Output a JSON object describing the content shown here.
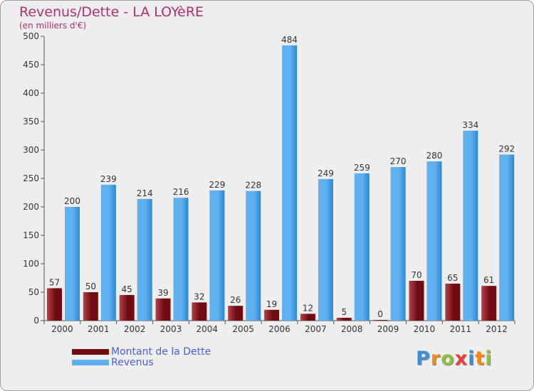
{
  "header": {
    "title": "Revenus/Dette - LA LOYèRE",
    "subtitle": "(en milliers d'€)"
  },
  "legend": {
    "debt_label": "Montant de la Dette",
    "revenue_label": "Revenus"
  },
  "colors": {
    "debt": "#6e0c12",
    "debt_light": "#b5414a",
    "revenue": "#2f86cf",
    "revenue_light": "#5eb0ee"
  },
  "logo": {
    "letters": [
      "P",
      "r",
      "o",
      "x",
      "i",
      "t",
      "i"
    ],
    "colors": [
      "#3a8fd8",
      "#f28a1a",
      "#8ac23d",
      "#e8403a",
      "#3a8fd8",
      "#f28a1a",
      "#8ac23d"
    ]
  },
  "chart_data": {
    "type": "bar",
    "title": "Revenus/Dette - LA LOYèRE",
    "ylabel": "(en milliers d'€)",
    "xlabel": "",
    "categories": [
      "2000",
      "2001",
      "2002",
      "2003",
      "2004",
      "2005",
      "2006",
      "2007",
      "2008",
      "2009",
      "2010",
      "2011",
      "2012"
    ],
    "series": [
      {
        "name": "Montant de la Dette",
        "values": [
          57,
          50,
          45,
          39,
          32,
          26,
          19,
          12,
          5,
          0,
          70,
          65,
          61
        ]
      },
      {
        "name": "Revenus",
        "values": [
          200,
          239,
          214,
          216,
          229,
          228,
          484,
          249,
          259,
          270,
          280,
          334,
          292
        ]
      }
    ],
    "ylim": [
      0,
      500
    ],
    "yticks": [
      0,
      50,
      100,
      150,
      200,
      250,
      300,
      350,
      400,
      450,
      500
    ],
    "grid": false,
    "legend_position": "bottom-left"
  }
}
